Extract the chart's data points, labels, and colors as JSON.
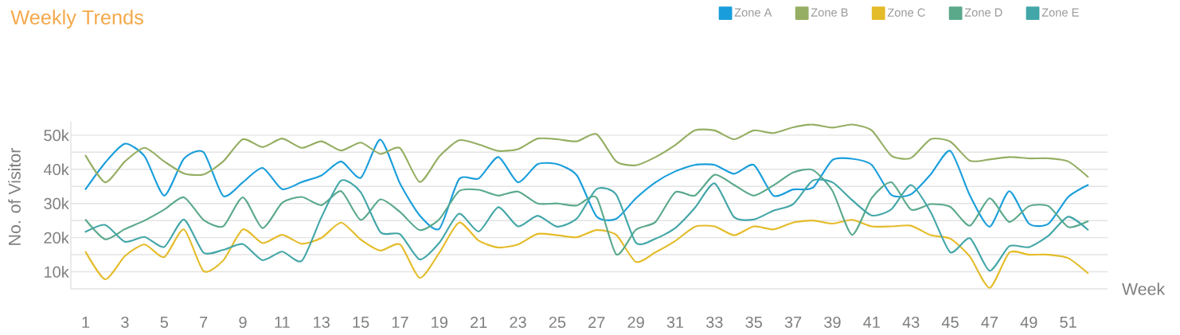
{
  "chart_data": {
    "type": "line",
    "title": "Weekly Trends",
    "xlabel": "Week",
    "ylabel": "No. of Visitor",
    "x": [
      1,
      2,
      3,
      4,
      5,
      6,
      7,
      8,
      9,
      10,
      11,
      12,
      13,
      14,
      15,
      16,
      17,
      18,
      19,
      20,
      21,
      22,
      23,
      24,
      25,
      26,
      27,
      28,
      29,
      30,
      31,
      32,
      33,
      34,
      35,
      36,
      37,
      38,
      39,
      40,
      41,
      42,
      43,
      44,
      45,
      46,
      47,
      48,
      49,
      50,
      51,
      52
    ],
    "xlim": [
      0.25,
      53
    ],
    "xticks": [
      1,
      3,
      5,
      7,
      9,
      11,
      13,
      15,
      17,
      19,
      21,
      23,
      25,
      27,
      29,
      31,
      33,
      35,
      37,
      39,
      41,
      43,
      45,
      47,
      49,
      51
    ],
    "ylim": [
      5000,
      54000
    ],
    "yticks": [
      {
        "value": 5000,
        "label": null
      },
      {
        "value": 10000,
        "label": "10k"
      },
      {
        "value": 15000,
        "label": null
      },
      {
        "value": 20000,
        "label": "20k"
      },
      {
        "value": 25000,
        "label": null
      },
      {
        "value": 30000,
        "label": "30k"
      },
      {
        "value": 35000,
        "label": null
      },
      {
        "value": 40000,
        "label": "40k"
      },
      {
        "value": 45000,
        "label": null
      },
      {
        "value": 50000,
        "label": "50k"
      }
    ],
    "grid": "y",
    "legend": "top right",
    "series": [
      {
        "name": "Zone A",
        "color": "#1a9edb",
        "values": [
          34200,
          42000,
          47500,
          43800,
          32300,
          43100,
          45000,
          32200,
          36200,
          40400,
          34200,
          36300,
          38200,
          42300,
          37500,
          48700,
          35800,
          26500,
          22600,
          37100,
          37300,
          43600,
          36200,
          41500,
          41500,
          38200,
          26200,
          25500,
          31500,
          36200,
          39400,
          41300,
          41300,
          38700,
          41300,
          32300,
          34100,
          34600,
          42700,
          43100,
          41300,
          32500,
          32700,
          38500,
          45400,
          32300,
          23200,
          33600,
          24100,
          24100,
          31900,
          35400
        ]
      },
      {
        "name": "Zone B",
        "color": "#95ae63",
        "values": [
          44000,
          36200,
          42300,
          46300,
          42300,
          38800,
          38500,
          42300,
          48800,
          46500,
          49000,
          46300,
          48200,
          45500,
          47800,
          44500,
          46200,
          36300,
          43800,
          48500,
          47300,
          45400,
          45900,
          49000,
          48800,
          48200,
          50300,
          42300,
          41200,
          43600,
          47100,
          51400,
          51400,
          48800,
          51400,
          50600,
          52300,
          53100,
          52200,
          53100,
          51400,
          44000,
          43300,
          48800,
          48100,
          42500,
          42900,
          43600,
          43200,
          43200,
          42300,
          37800
        ]
      },
      {
        "name": "Zone C",
        "color": "#e4bc2a",
        "values": [
          15800,
          7800,
          14600,
          18000,
          14300,
          22400,
          10200,
          13300,
          22400,
          18400,
          20800,
          18200,
          19900,
          24400,
          19400,
          16200,
          18000,
          8200,
          15600,
          24400,
          19100,
          17100,
          18000,
          21100,
          20700,
          20100,
          22200,
          20800,
          12900,
          15700,
          19000,
          23200,
          23300,
          20700,
          23300,
          22400,
          24400,
          25000,
          24100,
          25200,
          23300,
          23300,
          23500,
          20700,
          19700,
          14400,
          5300,
          15600,
          15000,
          15000,
          14000,
          9600
        ]
      },
      {
        "name": "Zone D",
        "color": "#5ba98b",
        "values": [
          25200,
          19500,
          22500,
          25000,
          28200,
          31800,
          25200,
          23300,
          31800,
          22800,
          30200,
          31900,
          29500,
          33600,
          25200,
          31200,
          27500,
          22200,
          25400,
          33600,
          34000,
          32300,
          33500,
          30000,
          30000,
          29400,
          31700,
          15100,
          22300,
          24600,
          33300,
          32300,
          38400,
          35400,
          32300,
          35300,
          39100,
          39800,
          33700,
          20800,
          31600,
          36200,
          28200,
          29800,
          29000,
          23500,
          31500,
          24600,
          29200,
          29200,
          23100,
          24800
        ]
      },
      {
        "name": "Zone E",
        "color": "#43a6a8",
        "values": [
          21700,
          23700,
          18800,
          20200,
          17300,
          25300,
          15600,
          16400,
          18100,
          13400,
          15900,
          13200,
          26000,
          36700,
          33300,
          21600,
          21000,
          13600,
          18500,
          27000,
          21800,
          28900,
          23300,
          26400,
          23200,
          25600,
          34200,
          32600,
          18500,
          19700,
          22800,
          28700,
          35900,
          26000,
          25300,
          27900,
          29800,
          36700,
          36200,
          31000,
          26500,
          28300,
          35400,
          27500,
          15700,
          19800,
          10300,
          17500,
          17200,
          20600,
          26100,
          22300
        ]
      }
    ]
  }
}
